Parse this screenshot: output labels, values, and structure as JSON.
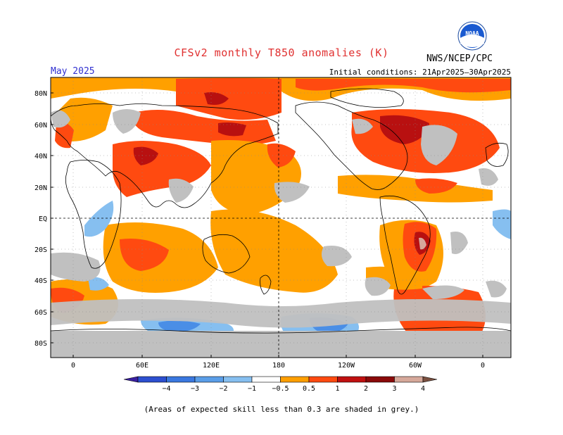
{
  "title": "CFSv2 monthly T850 anomalies (K)",
  "agency": "NWS/NCEP/CPC",
  "logo_text": "NOAA",
  "valid_period": "May 2025",
  "initial_conditions": "Initial conditions: 21Apr2025–30Apr2025",
  "footnote": "(Areas of expected skill less than 0.3 are shaded in grey.)",
  "lat_labels": [
    "80N",
    "60N",
    "40N",
    "20N",
    "EQ",
    "20S",
    "40S",
    "60S",
    "80S"
  ],
  "lon_labels": [
    "0",
    "60E",
    "120E",
    "180",
    "120W",
    "60W",
    "0"
  ],
  "colorbar": {
    "labels": [
      "−4",
      "−3",
      "−2",
      "−1",
      "−0.5",
      "0.5",
      "1",
      "2",
      "3",
      "4"
    ],
    "colors": [
      "#3a1fa0",
      "#2c4fd0",
      "#3a78e0",
      "#5a9ee8",
      "#86bff0",
      "#ffffff",
      "#ff9f00",
      "#ff4a10",
      "#c01010",
      "#8a0a0a",
      "#d6a89a",
      "#7a5040"
    ]
  },
  "colors": {
    "warm_weak": "#ffa000",
    "warm_mod": "#ff4a10",
    "warm_strong": "#b81010",
    "warm_extreme": "#d6a89a",
    "cool_weak": "#86bff0",
    "cool_mod": "#4a8ee6",
    "low_skill": "#c0c0c0"
  }
}
